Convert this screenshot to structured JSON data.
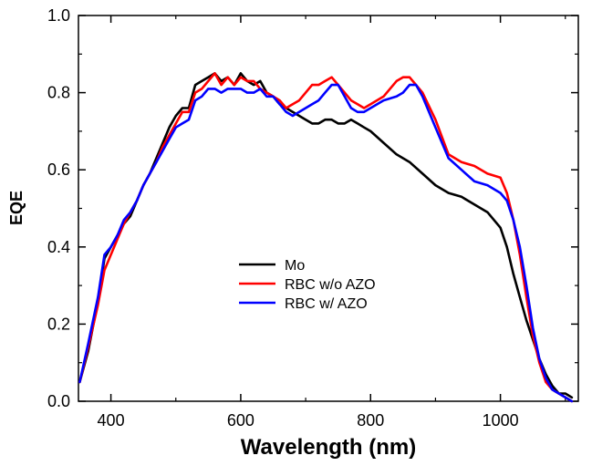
{
  "chart_data": {
    "type": "line",
    "title": "",
    "xlabel": "Wavelength (nm)",
    "ylabel": "EQE",
    "xlim": [
      350,
      1120
    ],
    "ylim": [
      0.0,
      1.0
    ],
    "xticks": [
      400,
      600,
      800,
      1000
    ],
    "xtick_labels": [
      "400",
      "600",
      "800",
      "1000"
    ],
    "yticks": [
      0.0,
      0.2,
      0.4,
      0.6,
      0.8,
      1.0
    ],
    "ytick_labels": [
      "0.0",
      "0.2",
      "0.4",
      "0.6",
      "0.8",
      "1.0"
    ],
    "grid": false,
    "legend_position": "center",
    "series": [
      {
        "name": "Mo",
        "color": "#000000",
        "x": [
          352,
          365,
          380,
          390,
          400,
          410,
          420,
          430,
          440,
          450,
          460,
          470,
          480,
          490,
          500,
          510,
          520,
          530,
          540,
          550,
          560,
          570,
          580,
          590,
          600,
          610,
          620,
          630,
          640,
          650,
          660,
          670,
          680,
          690,
          700,
          710,
          720,
          730,
          740,
          750,
          760,
          770,
          780,
          790,
          800,
          820,
          840,
          860,
          880,
          900,
          920,
          940,
          960,
          980,
          1000,
          1010,
          1020,
          1030,
          1040,
          1050,
          1060,
          1070,
          1080,
          1090,
          1100,
          1110
        ],
        "y": [
          0.05,
          0.13,
          0.26,
          0.37,
          0.4,
          0.43,
          0.46,
          0.48,
          0.52,
          0.56,
          0.59,
          0.63,
          0.67,
          0.71,
          0.74,
          0.76,
          0.76,
          0.82,
          0.83,
          0.84,
          0.85,
          0.83,
          0.84,
          0.82,
          0.85,
          0.83,
          0.82,
          0.83,
          0.8,
          0.79,
          0.77,
          0.76,
          0.75,
          0.74,
          0.73,
          0.72,
          0.72,
          0.73,
          0.73,
          0.72,
          0.72,
          0.73,
          0.72,
          0.71,
          0.7,
          0.67,
          0.64,
          0.62,
          0.59,
          0.56,
          0.54,
          0.53,
          0.51,
          0.49,
          0.45,
          0.4,
          0.33,
          0.27,
          0.21,
          0.16,
          0.11,
          0.07,
          0.04,
          0.02,
          0.02,
          0.01
        ]
      },
      {
        "name": "RBC w/o AZO",
        "color": "#ff0000",
        "x": [
          352,
          365,
          380,
          390,
          400,
          410,
          420,
          430,
          440,
          450,
          460,
          470,
          480,
          490,
          500,
          510,
          520,
          530,
          540,
          550,
          560,
          570,
          580,
          590,
          600,
          610,
          620,
          630,
          640,
          650,
          660,
          670,
          680,
          690,
          700,
          710,
          720,
          730,
          740,
          750,
          760,
          770,
          780,
          790,
          800,
          820,
          840,
          850,
          860,
          870,
          880,
          900,
          920,
          940,
          960,
          980,
          1000,
          1010,
          1020,
          1030,
          1040,
          1050,
          1060,
          1070,
          1080,
          1090,
          1100,
          1110
        ],
        "y": [
          0.05,
          0.14,
          0.25,
          0.34,
          0.38,
          0.42,
          0.46,
          0.49,
          0.52,
          0.56,
          0.59,
          0.62,
          0.66,
          0.69,
          0.72,
          0.75,
          0.75,
          0.8,
          0.81,
          0.83,
          0.85,
          0.82,
          0.84,
          0.82,
          0.84,
          0.83,
          0.83,
          0.81,
          0.8,
          0.79,
          0.78,
          0.76,
          0.77,
          0.78,
          0.8,
          0.82,
          0.82,
          0.83,
          0.84,
          0.82,
          0.8,
          0.78,
          0.77,
          0.76,
          0.77,
          0.79,
          0.83,
          0.84,
          0.84,
          0.82,
          0.8,
          0.73,
          0.64,
          0.62,
          0.61,
          0.59,
          0.58,
          0.54,
          0.47,
          0.38,
          0.27,
          0.17,
          0.1,
          0.05,
          0.03,
          0.02,
          0.01,
          0.0
        ]
      },
      {
        "name": "RBC w/ AZO",
        "color": "#0000ff",
        "x": [
          352,
          365,
          380,
          390,
          400,
          410,
          420,
          430,
          440,
          450,
          460,
          470,
          480,
          490,
          500,
          510,
          520,
          530,
          540,
          550,
          560,
          570,
          580,
          590,
          600,
          610,
          620,
          630,
          640,
          650,
          660,
          670,
          680,
          690,
          700,
          710,
          720,
          730,
          740,
          750,
          760,
          770,
          780,
          790,
          800,
          820,
          840,
          850,
          860,
          870,
          880,
          900,
          920,
          940,
          960,
          980,
          1000,
          1010,
          1020,
          1030,
          1040,
          1050,
          1060,
          1070,
          1080,
          1090,
          1100,
          1110
        ],
        "y": [
          0.05,
          0.15,
          0.27,
          0.38,
          0.4,
          0.43,
          0.47,
          0.49,
          0.52,
          0.56,
          0.59,
          0.62,
          0.65,
          0.68,
          0.71,
          0.72,
          0.73,
          0.78,
          0.79,
          0.81,
          0.81,
          0.8,
          0.81,
          0.81,
          0.81,
          0.8,
          0.8,
          0.81,
          0.79,
          0.79,
          0.77,
          0.75,
          0.74,
          0.75,
          0.76,
          0.77,
          0.78,
          0.8,
          0.82,
          0.82,
          0.79,
          0.76,
          0.75,
          0.75,
          0.76,
          0.78,
          0.79,
          0.8,
          0.82,
          0.82,
          0.79,
          0.71,
          0.63,
          0.6,
          0.57,
          0.56,
          0.54,
          0.52,
          0.47,
          0.4,
          0.3,
          0.19,
          0.11,
          0.06,
          0.03,
          0.02,
          0.01,
          0.0
        ]
      }
    ]
  }
}
